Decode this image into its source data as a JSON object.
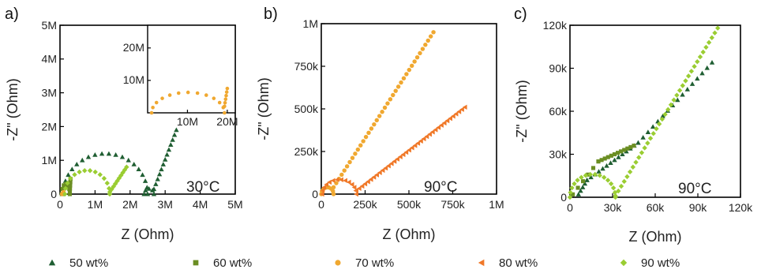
{
  "series_colors": {
    "50 wt%": "#1f5e32",
    "60 wt%": "#6b8e23",
    "70 wt%": "#f0a830",
    "80 wt%": "#f07828",
    "90 wt%": "#9acd32"
  },
  "legend": [
    {
      "name": "50 wt%",
      "marker": "triangle",
      "color": "#1f5e32"
    },
    {
      "name": "60 wt%",
      "marker": "square",
      "color": "#6b8e23"
    },
    {
      "name": "70 wt%",
      "marker": "circle",
      "color": "#f0a830"
    },
    {
      "name": "80 wt%",
      "marker": "triangle-left",
      "color": "#f07828"
    },
    {
      "name": "90 wt%",
      "marker": "diamond",
      "color": "#9acd32"
    }
  ],
  "chart_data": [
    {
      "panel": "a)",
      "type": "scatter",
      "title": "",
      "annotation": "30°C",
      "xlabel": "Z (Ohm)",
      "ylabel": "-Z\" (Ohm)",
      "xlim": [
        0,
        5000000
      ],
      "ylim": [
        0,
        5000000
      ],
      "xticks": [
        {
          "v": 0,
          "label": "0"
        },
        {
          "v": 1000000,
          "label": "1M"
        },
        {
          "v": 2000000,
          "label": "2M"
        },
        {
          "v": 3000000,
          "label": "3M"
        },
        {
          "v": 4000000,
          "label": "4M"
        },
        {
          "v": 5000000,
          "label": "5M"
        }
      ],
      "yticks": [
        {
          "v": 0,
          "label": "0"
        },
        {
          "v": 1000000,
          "label": "1M"
        },
        {
          "v": 2000000,
          "label": "2M"
        },
        {
          "v": 3000000,
          "label": "3M"
        },
        {
          "v": 4000000,
          "label": "4M"
        },
        {
          "v": 5000000,
          "label": "5M"
        }
      ],
      "series": [
        {
          "name": "50 wt%",
          "marker": "triangle",
          "arcs": [
            {
              "x0": 90000,
              "x1": 2500000,
              "h": 1200000,
              "n": 20
            },
            {
              "x0": 2400000,
              "x1": 2680000,
              "h": 160000,
              "n": 5
            }
          ],
          "lines": [
            {
              "x0": 2680000,
              "y0": 150000,
              "x1": 3320000,
              "y1": 1900000,
              "n": 13
            }
          ]
        },
        {
          "name": "60 wt%",
          "marker": "square",
          "arcs": [
            {
              "x0": 50000,
              "x1": 280000,
              "h": 300000,
              "n": 7
            }
          ],
          "lines": [
            {
              "x0": 280000,
              "y0": 60000,
              "x1": 300000,
              "y1": 450000,
              "n": 5
            }
          ]
        },
        {
          "name": "70 wt%",
          "marker": "circle",
          "arcs": [],
          "lines": [
            {
              "x0": 60000,
              "y0": 0,
              "x1": 100000,
              "y1": 60000,
              "n": 4
            }
          ]
        },
        {
          "name": "90 wt%",
          "marker": "diamond",
          "arcs": [
            {
              "x0": 140000,
              "x1": 1420000,
              "h": 700000,
              "n": 14
            }
          ],
          "lines": [
            {
              "x0": 1420000,
              "y0": 60000,
              "x1": 1900000,
              "y1": 800000,
              "n": 10
            }
          ]
        }
      ],
      "inset": {
        "xlim": [
          0,
          22000000
        ],
        "ylim": [
          0,
          27000000
        ],
        "xticks": [
          {
            "v": 10000000,
            "label": "10M"
          },
          {
            "v": 20000000,
            "label": "20M"
          }
        ],
        "yticks": [
          {
            "v": 10000000,
            "label": "10M"
          },
          {
            "v": 20000000,
            "label": "20M"
          }
        ],
        "series": [
          {
            "name": "70 wt%",
            "marker": "circle",
            "arcs": [
              {
                "x0": 1000000,
                "x1": 19300000,
                "h": 6300000,
                "n": 13
              }
            ],
            "lines": [
              {
                "x0": 19300000,
                "y0": 2000000,
                "x1": 20000000,
                "y1": 7500000,
                "n": 6
              }
            ]
          }
        ]
      }
    },
    {
      "panel": "b)",
      "type": "scatter",
      "title": "",
      "annotation": "90°C",
      "xlabel": "Z (Ohm)",
      "ylabel": "-Z\" (Ohm)",
      "xlim": [
        0,
        1000000
      ],
      "ylim": [
        0,
        1000000
      ],
      "xticks": [
        {
          "v": 0,
          "label": "0"
        },
        {
          "v": 250000,
          "label": "250k"
        },
        {
          "v": 500000,
          "label": "500k"
        },
        {
          "v": 750000,
          "label": "750k"
        },
        {
          "v": 1000000,
          "label": "1M"
        }
      ],
      "yticks": [
        {
          "v": 0,
          "label": "0"
        },
        {
          "v": 250000,
          "label": "250k"
        },
        {
          "v": 500000,
          "label": "500k"
        },
        {
          "v": 750000,
          "label": "750k"
        },
        {
          "v": 1000000,
          "label": "1M"
        }
      ],
      "series": [
        {
          "name": "70 wt%",
          "marker": "circle",
          "arcs": [
            {
              "x0": 0,
              "x1": 70000,
              "h": 40000,
              "n": 8
            }
          ],
          "lines": [
            {
              "x0": 70000,
              "y0": 40000,
              "x1": 640000,
              "y1": 950000,
              "n": 38
            }
          ]
        },
        {
          "name": "80 wt%",
          "marker": "triangle-left",
          "arcs": [
            {
              "x0": 5000,
              "x1": 200000,
              "h": 85000,
              "n": 14
            }
          ],
          "lines": [
            {
              "x0": 200000,
              "y0": 20000,
              "x1": 820000,
              "y1": 510000,
              "n": 38
            }
          ]
        }
      ]
    },
    {
      "panel": "c)",
      "type": "scatter",
      "title": "",
      "annotation": "90°C",
      "xlabel": "Z (Ohm)",
      "ylabel": "-Z\" (Ohm)",
      "xlim": [
        0,
        120000
      ],
      "ylim": [
        0,
        120000
      ],
      "xticks": [
        {
          "v": 0,
          "label": "0"
        },
        {
          "v": 30000,
          "label": "30k"
        },
        {
          "v": 60000,
          "label": "60k"
        },
        {
          "v": 90000,
          "label": "90k"
        },
        {
          "v": 120000,
          "label": "120k"
        }
      ],
      "yticks": [
        {
          "v": 0,
          "label": "0"
        },
        {
          "v": 30000,
          "label": "30k"
        },
        {
          "v": 60000,
          "label": "60k"
        },
        {
          "v": 90000,
          "label": "90k"
        },
        {
          "v": 120000,
          "label": "120k"
        }
      ],
      "series": [
        {
          "name": "50 wt%",
          "marker": "triangle",
          "arcs": [],
          "lines": [
            {
              "x0": 6000,
              "y0": 2000,
              "x1": 12000,
              "y1": 12000,
              "n": 5
            },
            {
              "x0": 12000,
              "y0": 12000,
              "x1": 48000,
              "y1": 38000,
              "n": 14
            },
            {
              "x0": 48000,
              "y0": 38000,
              "x1": 100000,
              "y1": 94000,
              "n": 16
            }
          ]
        },
        {
          "name": "60 wt%",
          "marker": "square",
          "arcs": [],
          "lines": [
            {
              "x0": 2000,
              "y0": 2000,
              "x1": 20000,
              "y1": 25000,
              "n": 6
            },
            {
              "x0": 20000,
              "y0": 25000,
              "x1": 45000,
              "y1": 36000,
              "n": 12
            }
          ]
        },
        {
          "name": "90 wt%",
          "marker": "diamond",
          "arcs": [
            {
              "x0": 0,
              "x1": 32000,
              "h": 16000,
              "n": 16
            }
          ],
          "lines": [
            {
              "x0": 32000,
              "y0": 1000,
              "x1": 104000,
              "y1": 118000,
              "n": 36
            }
          ]
        }
      ]
    }
  ]
}
